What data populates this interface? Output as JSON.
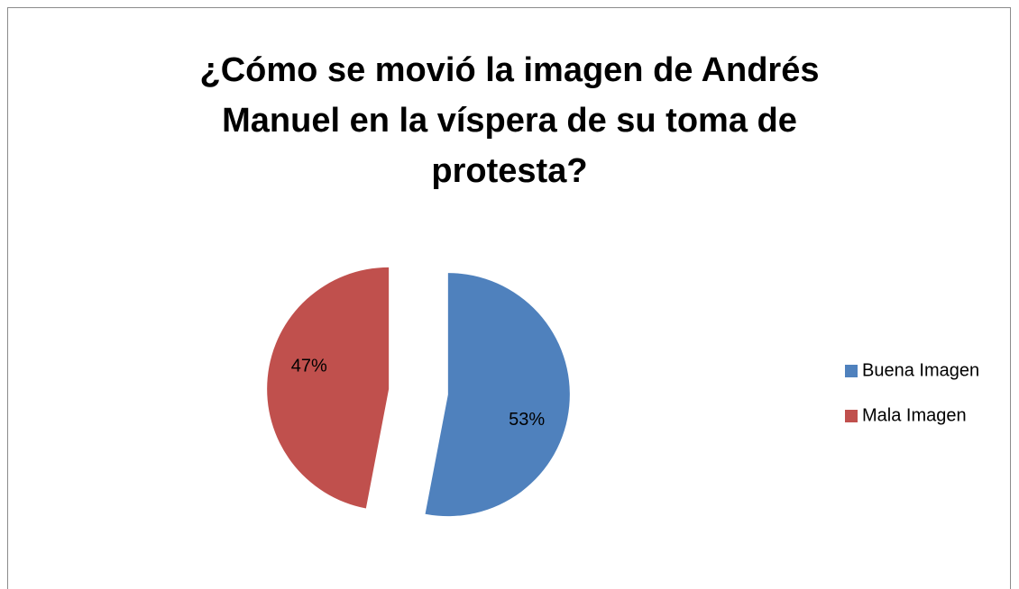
{
  "chart_data": {
    "type": "pie",
    "title": "¿Cómo se movió la imagen de Andrés Manuel en la víspera de su toma de protesta?",
    "categories": [
      "Buena Imagen",
      "Mala Imagen"
    ],
    "values": [
      53,
      47
    ],
    "value_labels": [
      "53%",
      "47%"
    ],
    "colors": [
      "#4f81bd",
      "#c0504d"
    ],
    "legend": "right"
  }
}
